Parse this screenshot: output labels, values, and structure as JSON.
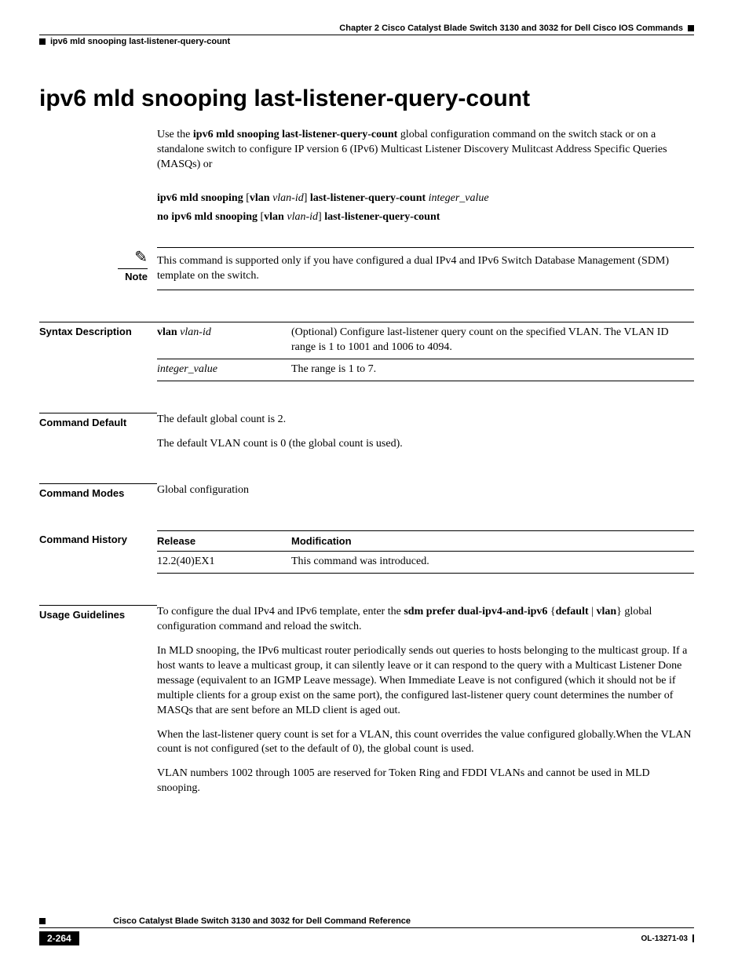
{
  "header": {
    "chapter": "Chapter 2      Cisco Catalyst Blade Switch 3130 and 3032 for Dell Cisco IOS Commands",
    "subheader": "ipv6 mld snooping last-listener-query-count"
  },
  "title": "ipv6 mld snooping last-listener-query-count",
  "intro": {
    "pre": "Use the ",
    "cmd": "ipv6 mld snooping last-listener-query-count",
    "post": " global configuration command on the switch stack or on a standalone switch to configure IP version 6 (IPv6) Multicast Listener Discovery Mulitcast Address Specific Queries (MASQs) or"
  },
  "syntax": {
    "line1": {
      "p1": "ipv6 mld snooping ",
      "p2": "[",
      "p3": "vlan ",
      "p4": "vlan-id",
      "p5": "] ",
      "p6": "last-listener-query-count ",
      "p7": "integer_value"
    },
    "line2": {
      "p1": "no ipv6 mld snooping ",
      "p2": "[",
      "p3": "vlan ",
      "p4": "vlan-id",
      "p5": "] ",
      "p6": "last-listener-query-count"
    }
  },
  "note": {
    "label": "Note",
    "text": "This command is supported only if you have configured a dual IPv4 and IPv6 Switch Database Management (SDM) template on the switch."
  },
  "syntax_desc": {
    "label": "Syntax Description",
    "rows": [
      {
        "param_b": "vlan ",
        "param_i": "vlan-id",
        "desc": "(Optional) Configure last-listener query count on the specified VLAN. The VLAN ID range is 1 to 1001 and 1006 to 4094."
      },
      {
        "param_b": "",
        "param_i": "integer_value",
        "desc": "The range is 1 to 7."
      }
    ]
  },
  "cmd_default": {
    "label": "Command Default",
    "p1": "The default global count is 2.",
    "p2": "The default VLAN count is 0 (the global count is used)."
  },
  "cmd_modes": {
    "label": "Command Modes",
    "text": "Global configuration"
  },
  "cmd_history": {
    "label": "Command History",
    "headers": [
      "Release",
      "Modification"
    ],
    "rows": [
      [
        "12.2(40)EX1",
        "This command was introduced."
      ]
    ]
  },
  "usage": {
    "label": "Usage Guidelines",
    "p1": {
      "pre": "To configure the dual IPv4 and IPv6 template, enter the ",
      "b1": "sdm prefer dual-ipv4-and-ipv6 ",
      "brace1": "{",
      "b2": "default",
      "pipe": " | ",
      "b3": "vlan",
      "brace2": "}",
      "post": " global configuration command and reload the switch."
    },
    "p2": "In MLD snooping, the IPv6 multicast router periodically sends out queries to hosts belonging to the multicast group. If a host wants to leave a multicast group, it can silently leave or it can respond to the query with a Multicast Listener Done message (equivalent to an IGMP Leave message). When Immediate Leave is not configured (which it should not be if multiple clients for a group exist on the same port), the configured last-listener query count determines the number of MASQs that are sent before an MLD client is aged out.",
    "p3": "When the last-listener query count is set for a VLAN, this count overrides the value configured globally.When the VLAN count is not configured (set to the default of 0), the global count is used.",
    "p4": "VLAN numbers 1002 through 1005 are reserved for Token Ring and FDDI VLANs and cannot be used in MLD snooping."
  },
  "footer": {
    "title": "Cisco Catalyst Blade Switch 3130 and 3032 for Dell Command Reference",
    "page": "2-264",
    "docid": "OL-13271-03"
  }
}
